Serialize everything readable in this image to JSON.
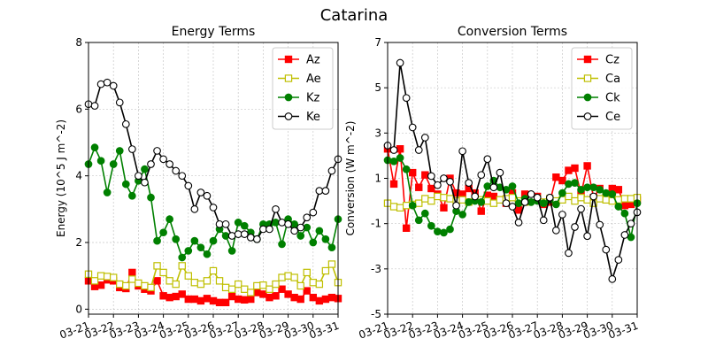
{
  "figure": {
    "suptitle": "Catarina"
  },
  "chart_data": [
    {
      "type": "line",
      "title": "Energy Terms",
      "xlabel": "",
      "ylabel": "Energy (10^5 J m^-2)",
      "x_tick_labels": [
        "03-21",
        "03-22",
        "03-23",
        "03-24",
        "03-25",
        "03-26",
        "03-27",
        "03-28",
        "03-29",
        "03-30",
        "03-31"
      ],
      "y_ticks": [
        0,
        2,
        4,
        6,
        8
      ],
      "ylim": [
        -0.15,
        8
      ],
      "grid": true,
      "legend_position": "top-right",
      "series": [
        {
          "name": "Az",
          "color": "#ff0000",
          "marker": "square-filled",
          "values": [
            0.85,
            0.68,
            0.72,
            0.88,
            0.85,
            0.65,
            0.62,
            1.1,
            0.7,
            0.6,
            0.55,
            0.85,
            0.4,
            0.35,
            0.38,
            0.45,
            0.3,
            0.3,
            0.25,
            0.32,
            0.25,
            0.2,
            0.2,
            0.38,
            0.3,
            0.28,
            0.3,
            0.5,
            0.45,
            0.35,
            0.4,
            0.6,
            0.45,
            0.35,
            0.3,
            0.55,
            0.35,
            0.25,
            0.3,
            0.35,
            0.32
          ]
        },
        {
          "name": "Ae",
          "color": "#bfbf00",
          "marker": "square-open",
          "values": [
            1.05,
            0.85,
            1.0,
            0.98,
            0.95,
            0.75,
            0.7,
            0.9,
            0.78,
            0.7,
            0.65,
            1.3,
            1.1,
            0.85,
            0.75,
            1.3,
            1.0,
            0.8,
            0.75,
            0.85,
            1.15,
            0.85,
            0.65,
            0.6,
            0.75,
            0.6,
            0.5,
            0.7,
            0.72,
            0.6,
            0.75,
            0.95,
            1.0,
            0.95,
            0.7,
            1.1,
            0.8,
            0.75,
            1.15,
            1.35,
            0.8
          ]
        },
        {
          "name": "Kz",
          "color": "#008000",
          "marker": "circle-filled",
          "values": [
            4.35,
            4.85,
            4.45,
            3.5,
            4.35,
            4.75,
            3.75,
            3.4,
            3.85,
            4.2,
            3.35,
            2.05,
            2.3,
            2.7,
            2.1,
            1.55,
            1.75,
            2.05,
            1.85,
            1.65,
            2.05,
            2.4,
            2.2,
            1.75,
            2.6,
            2.5,
            2.3,
            2.1,
            2.55,
            2.55,
            2.6,
            1.95,
            2.7,
            2.55,
            2.2,
            2.45,
            2.0,
            2.35,
            2.1,
            1.85,
            2.7
          ]
        },
        {
          "name": "Ke",
          "color": "#000000",
          "marker": "circle-open",
          "values": [
            6.15,
            6.1,
            6.75,
            6.8,
            6.7,
            6.2,
            5.55,
            4.8,
            4.0,
            3.8,
            4.35,
            4.75,
            4.5,
            4.35,
            4.15,
            4.0,
            3.7,
            3.0,
            3.5,
            3.4,
            3.05,
            2.55,
            2.55,
            2.2,
            2.25,
            2.25,
            2.15,
            2.1,
            2.4,
            2.4,
            3.0,
            2.6,
            2.55,
            2.35,
            2.45,
            2.75,
            2.9,
            3.55,
            3.55,
            4.15,
            4.5
          ]
        }
      ]
    },
    {
      "type": "line",
      "title": "Conversion Terms",
      "xlabel": "",
      "ylabel": "Conversion (W m^-2)",
      "x_tick_labels": [
        "03-21",
        "03-22",
        "03-23",
        "03-24",
        "03-25",
        "03-26",
        "03-27",
        "03-28",
        "03-29",
        "03-30",
        "03-31"
      ],
      "y_ticks": [
        -5,
        -3,
        -1,
        1,
        3,
        5,
        7
      ],
      "ylim": [
        -5,
        7
      ],
      "grid": true,
      "legend_position": "top-right",
      "series": [
        {
          "name": "Cz",
          "color": "#ff0000",
          "marker": "square-filled",
          "values": [
            2.3,
            0.75,
            2.3,
            -1.2,
            1.25,
            0.6,
            1.15,
            0.55,
            0.3,
            -0.3,
            1.0,
            0.35,
            0.3,
            0.55,
            0.35,
            -0.45,
            0.25,
            0.2,
            0.05,
            -0.1,
            0.35,
            -0.4,
            0.3,
            0.2,
            0.2,
            -0.15,
            -0.05,
            1.05,
            0.9,
            1.35,
            1.45,
            0.3,
            1.55,
            0.15,
            0.55,
            0.2,
            0.55,
            0.5,
            -0.2,
            -0.15,
            0.05
          ]
        },
        {
          "name": "Ca",
          "color": "#bfbf00",
          "marker": "square-open",
          "values": [
            -0.1,
            -0.25,
            -0.3,
            -0.2,
            -0.15,
            -0.1,
            0.1,
            0.0,
            0.2,
            0.15,
            0.1,
            0.0,
            0.05,
            -0.05,
            0.1,
            0.05,
            0.0,
            -0.1,
            0.05,
            0.1,
            0.15,
            0.0,
            -0.05,
            0.05,
            0.1,
            -0.05,
            0.1,
            0.0,
            0.05,
            0.2,
            0.0,
            0.15,
            0.05,
            -0.1,
            0.1,
            0.05,
            0.0,
            0.05,
            0.1,
            0.1,
            0.15
          ]
        },
        {
          "name": "Ck",
          "color": "#008000",
          "marker": "circle-filled",
          "values": [
            1.8,
            1.75,
            1.9,
            1.4,
            -0.2,
            -0.85,
            -0.55,
            -1.1,
            -1.35,
            -1.4,
            -1.25,
            -0.45,
            -0.6,
            -0.05,
            0.0,
            -0.05,
            0.65,
            0.9,
            0.6,
            0.5,
            0.65,
            -0.1,
            0.1,
            -0.05,
            0.0,
            -0.1,
            0.05,
            -0.15,
            0.35,
            0.75,
            0.8,
            0.5,
            0.6,
            0.6,
            0.5,
            0.35,
            0.3,
            -0.25,
            -0.55,
            -1.6,
            -0.1
          ]
        },
        {
          "name": "Ce",
          "color": "#000000",
          "marker": "circle-open",
          "values": [
            2.45,
            2.25,
            6.1,
            4.55,
            3.25,
            2.25,
            2.8,
            1.1,
            0.7,
            1.0,
            0.85,
            -0.2,
            2.2,
            0.8,
            0.2,
            1.15,
            1.85,
            0.6,
            1.25,
            -0.1,
            -0.25,
            -0.95,
            -0.05,
            0.3,
            0.15,
            -0.85,
            0.15,
            -1.3,
            -0.6,
            -2.3,
            -1.15,
            -0.35,
            -1.55,
            0.2,
            -1.05,
            -2.15,
            -3.45,
            -2.6,
            -1.5,
            -1.0,
            -0.5
          ]
        }
      ]
    }
  ]
}
